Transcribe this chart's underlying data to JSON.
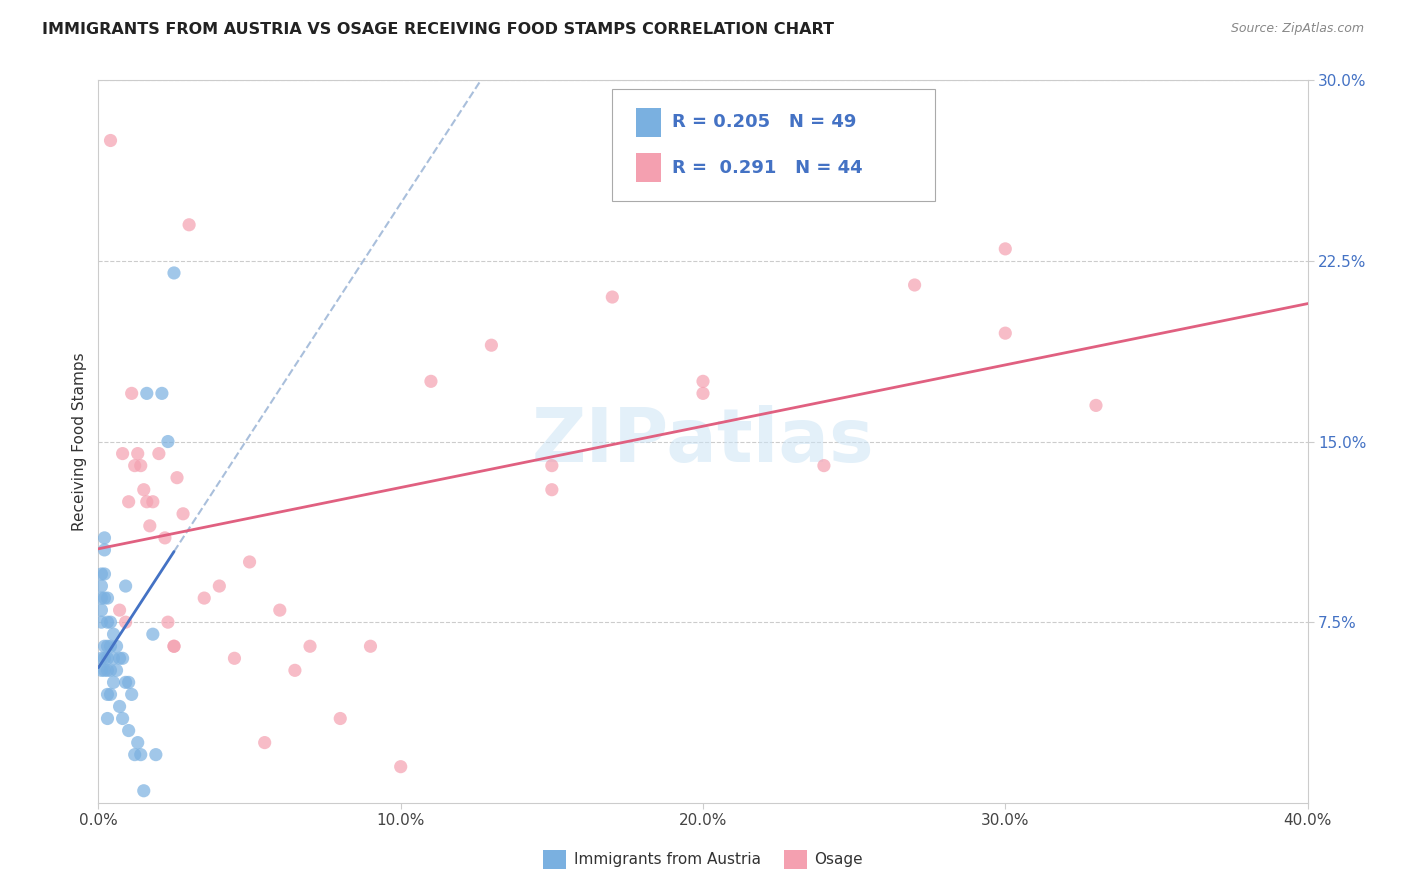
{
  "title": "IMMIGRANTS FROM AUSTRIA VS OSAGE RECEIVING FOOD STAMPS CORRELATION CHART",
  "source": "Source: ZipAtlas.com",
  "ylabel": "Receiving Food Stamps",
  "xlim": [
    0.0,
    0.4
  ],
  "ylim": [
    0.0,
    0.3
  ],
  "xticks": [
    0.0,
    0.1,
    0.2,
    0.3,
    0.4
  ],
  "xticklabels": [
    "0.0%",
    "10.0%",
    "20.0%",
    "30.0%",
    "40.0%"
  ],
  "yticks_right": [
    0.075,
    0.15,
    0.225,
    0.3
  ],
  "yticklabels_right": [
    "7.5%",
    "15.0%",
    "22.5%",
    "30.0%"
  ],
  "legend_r1": "0.205",
  "legend_n1": "49",
  "legend_r2": "0.291",
  "legend_n2": "44",
  "legend_label1": "Immigrants from Austria",
  "legend_label2": "Osage",
  "color_blue": "#7ab0e0",
  "color_pink": "#f4a0b0",
  "color_blue_line": "#4472c4",
  "color_pink_line": "#e06080",
  "color_dashed": "#a0b8d8",
  "background": "#ffffff",
  "watermark": "ZIPatlas",
  "blue_x": [
    0.001,
    0.001,
    0.001,
    0.001,
    0.001,
    0.001,
    0.001,
    0.002,
    0.002,
    0.002,
    0.002,
    0.002,
    0.002,
    0.002,
    0.003,
    0.003,
    0.003,
    0.003,
    0.003,
    0.003,
    0.003,
    0.004,
    0.004,
    0.004,
    0.004,
    0.005,
    0.005,
    0.005,
    0.006,
    0.006,
    0.007,
    0.007,
    0.008,
    0.008,
    0.009,
    0.009,
    0.01,
    0.01,
    0.011,
    0.012,
    0.013,
    0.014,
    0.015,
    0.016,
    0.018,
    0.019,
    0.021,
    0.023,
    0.025
  ],
  "blue_y": [
    0.075,
    0.08,
    0.085,
    0.09,
    0.095,
    0.055,
    0.06,
    0.11,
    0.105,
    0.095,
    0.085,
    0.065,
    0.06,
    0.055,
    0.085,
    0.075,
    0.065,
    0.06,
    0.055,
    0.045,
    0.035,
    0.075,
    0.065,
    0.055,
    0.045,
    0.07,
    0.06,
    0.05,
    0.065,
    0.055,
    0.06,
    0.04,
    0.06,
    0.035,
    0.09,
    0.05,
    0.05,
    0.03,
    0.045,
    0.02,
    0.025,
    0.02,
    0.005,
    0.17,
    0.07,
    0.02,
    0.17,
    0.15,
    0.22
  ],
  "pink_x": [
    0.004,
    0.007,
    0.008,
    0.009,
    0.01,
    0.011,
    0.012,
    0.013,
    0.014,
    0.015,
    0.016,
    0.017,
    0.018,
    0.02,
    0.022,
    0.023,
    0.025,
    0.026,
    0.028,
    0.03,
    0.035,
    0.04,
    0.045,
    0.05,
    0.055,
    0.06,
    0.065,
    0.07,
    0.08,
    0.09,
    0.1,
    0.11,
    0.13,
    0.15,
    0.17,
    0.2,
    0.24,
    0.27,
    0.3,
    0.33,
    0.3,
    0.2,
    0.15,
    0.025
  ],
  "pink_y": [
    0.275,
    0.08,
    0.145,
    0.075,
    0.125,
    0.17,
    0.14,
    0.145,
    0.14,
    0.13,
    0.125,
    0.115,
    0.125,
    0.145,
    0.11,
    0.075,
    0.065,
    0.135,
    0.12,
    0.24,
    0.085,
    0.09,
    0.06,
    0.1,
    0.025,
    0.08,
    0.055,
    0.065,
    0.035,
    0.065,
    0.015,
    0.175,
    0.19,
    0.13,
    0.21,
    0.175,
    0.14,
    0.215,
    0.23,
    0.165,
    0.195,
    0.17,
    0.14,
    0.065
  ]
}
